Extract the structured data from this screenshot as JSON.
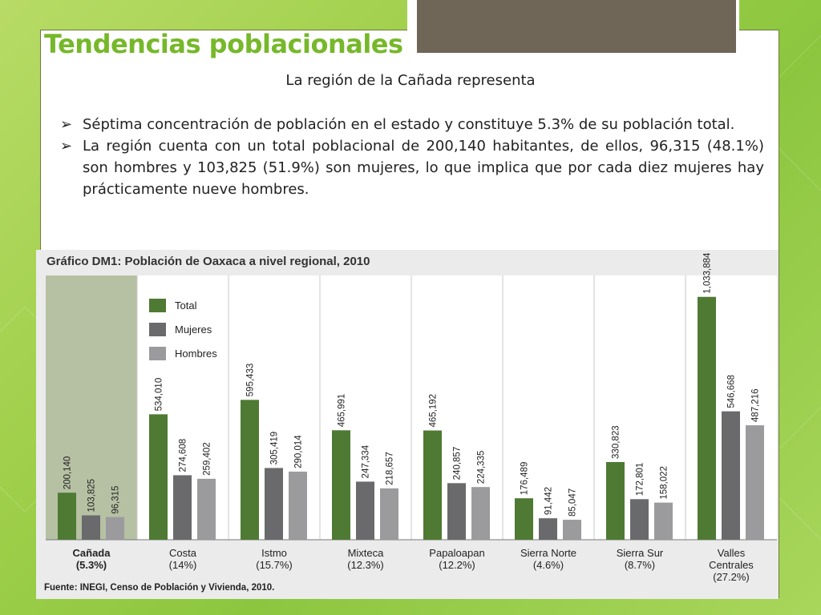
{
  "slide": {
    "title": "Tendencias poblacionales",
    "intro": "La región de la Cañada representa",
    "bullets": [
      "Séptima concentración de población en el estado y constituye 5.3% de su población total.",
      "La región cuenta con un total poblacional de 200,140 habitantes, de ellos, 96,315 (48.1%) son hombres y 103,825 (51.9%) son mujeres, lo que implica que por cada diez mujeres hay prácticamente nueve hombres."
    ]
  },
  "chart_data": {
    "type": "bar",
    "title": "Gráfico DM1: Población de Oaxaca a nivel regional, 2010",
    "source": "Fuente: INEGI, Censo de Población y Vivienda, 2010.",
    "categories": [
      "Cañada",
      "Costa",
      "Istmo",
      "Mixteca",
      "Papaloapan",
      "Sierra Norte",
      "Sierra Sur",
      "Valles Centrales"
    ],
    "category_shares": [
      "(5.3%)",
      "(14%)",
      "(15.7%)",
      "(12.3%)",
      "(12.2%)",
      "(4.6%)",
      "(8.7%)",
      "(27.2%)"
    ],
    "series": [
      {
        "name": "Total",
        "color": "#4e7a33",
        "values": [
          200140,
          534010,
          595433,
          465991,
          465192,
          176489,
          330823,
          1033884
        ],
        "labels": [
          "200,140",
          "534,010",
          "595,433",
          "465,991",
          "465,192",
          "176,489",
          "330,823",
          "1,033,884"
        ]
      },
      {
        "name": "Mujeres",
        "color": "#6a6a6c",
        "values": [
          103825,
          274608,
          305419,
          247334,
          240857,
          91442,
          172801,
          546668
        ],
        "labels": [
          "103,825",
          "274,608",
          "305,419",
          "247,334",
          "240,857",
          "91,442",
          "172,801",
          "546,668"
        ]
      },
      {
        "name": "Hombres",
        "color": "#9b9b9e",
        "values": [
          96315,
          259402,
          290014,
          218657,
          224335,
          85047,
          158022,
          487216
        ],
        "labels": [
          "96,315",
          "259,402",
          "290,014",
          "218,657",
          "224,335",
          "85,047",
          "158,022",
          "487,216"
        ]
      }
    ],
    "highlight_category": "Cañada",
    "ylim": [
      0,
      1200000
    ],
    "legend_position": "top-left",
    "grid": false
  }
}
